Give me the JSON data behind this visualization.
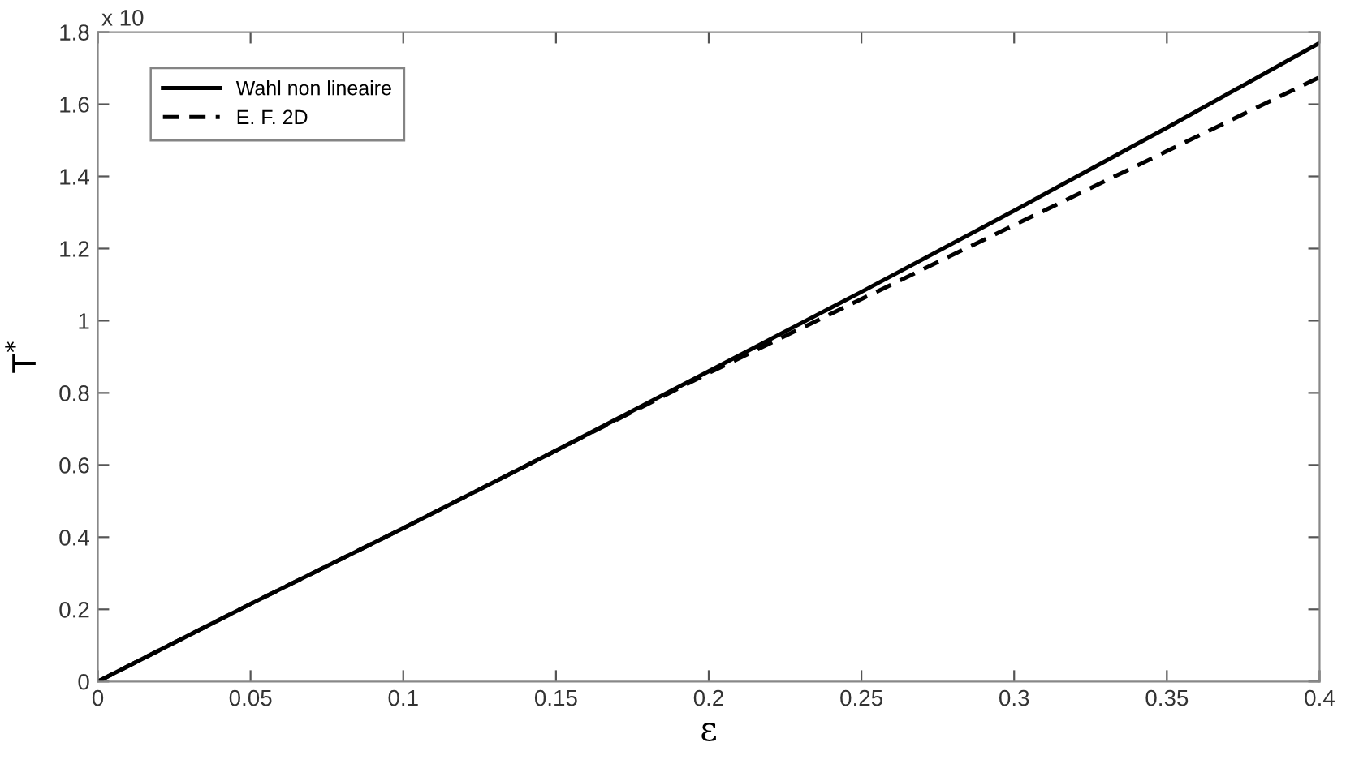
{
  "chart_data": {
    "type": "line",
    "xlabel": "ε",
    "ylabel": "T$^{*}$",
    "annotations": [
      "x 10"
    ],
    "x": [
      0,
      0.05,
      0.1,
      0.15,
      0.2,
      0.25,
      0.3,
      0.35,
      0.4
    ],
    "series": [
      {
        "name": "Wahl non lineaire",
        "color": "#000000",
        "line_style": "solid",
        "values": [
          0,
          0.215,
          0.425,
          0.64,
          0.86,
          1.08,
          1.305,
          1.535,
          1.77
        ]
      },
      {
        "name": "E. F. 2D",
        "color": "#000000",
        "line_style": "dashed",
        "values": [
          0,
          0.215,
          0.425,
          0.64,
          0.855,
          1.06,
          1.265,
          1.47,
          1.675
        ]
      }
    ],
    "xlim": [
      0,
      0.4
    ],
    "xticks": [
      0,
      0.05,
      0.1,
      0.15,
      0.2,
      0.25,
      0.3,
      0.35,
      0.4
    ],
    "ylim": [
      0,
      1.8
    ],
    "yticks": [
      0,
      0.2,
      0.4,
      0.6,
      0.8,
      1,
      1.2,
      1.4,
      1.6,
      1.8
    ],
    "grid": false,
    "legend": "top left",
    "marker": "none"
  }
}
